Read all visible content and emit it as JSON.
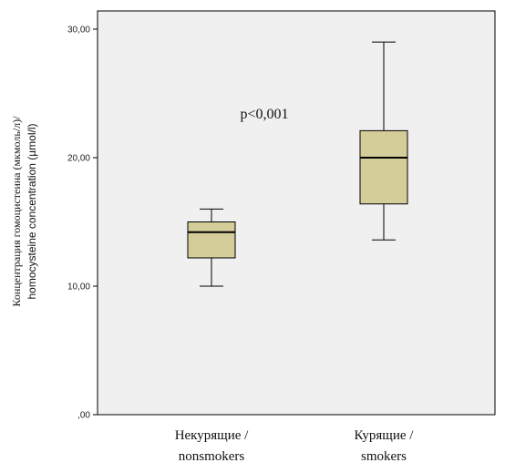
{
  "chart_data": {
    "type": "boxplot",
    "title": "",
    "ylabel_line1": "Концентрация гомоцистеина (мкмоль/л)/",
    "ylabel_line2": "homocysteine concentration (µmol/l)",
    "ylim": [
      0,
      30
    ],
    "yticks": [
      0,
      10,
      20,
      30
    ],
    "ytick_labels": [
      ",00",
      "10,00",
      "20,00",
      "30,00"
    ],
    "annotation": "p<0,001",
    "grid": false,
    "categories": [
      {
        "line1": "Некурящие /",
        "line2": "nonsmokers"
      },
      {
        "line1": "Курящие /",
        "line2": "smokers"
      }
    ],
    "boxes": [
      {
        "min": 10.0,
        "q1": 12.2,
        "median": 14.2,
        "q3": 15.0,
        "max": 16.0
      },
      {
        "min": 13.6,
        "q1": 16.4,
        "median": 20.0,
        "q3": 22.1,
        "max": 29.0
      }
    ],
    "colors": {
      "plot_bg": "#f0f0f0",
      "box_fill": "#d4cc99",
      "stroke": "#000000"
    }
  }
}
